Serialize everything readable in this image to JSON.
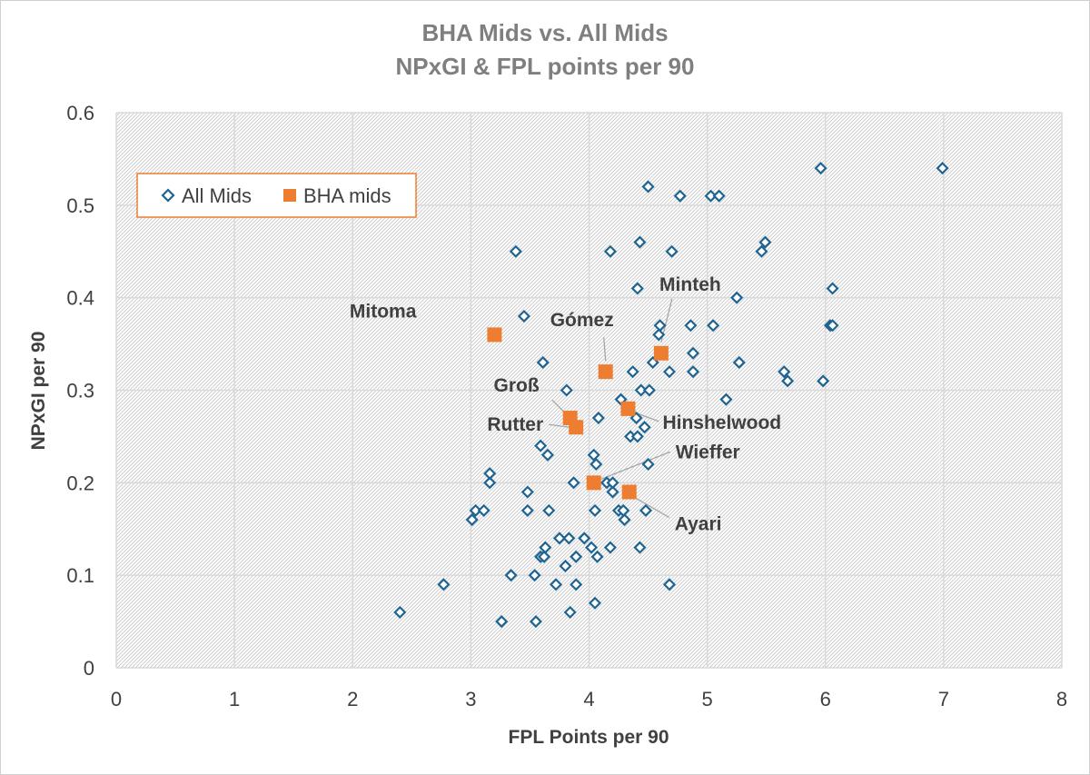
{
  "chart_data": {
    "type": "scatter",
    "title": "BHA Mids vs. All Mids",
    "subtitle": "NPxGI & FPL points per 90",
    "xlabel": "FPL Points per 90",
    "ylabel": "NPxGI per 90",
    "xlim": [
      0,
      8
    ],
    "ylim": [
      0,
      0.6
    ],
    "x_ticks": [
      "0",
      "1",
      "2",
      "3",
      "4",
      "5",
      "6",
      "7",
      "8"
    ],
    "y_ticks": [
      "0",
      "0.1",
      "0.2",
      "0.3",
      "0.4",
      "0.5",
      "0.6"
    ],
    "grid": true,
    "legend_position": "top-left",
    "series": [
      {
        "name": "All Mids",
        "marker": "diamond-outline",
        "color": "#1f6491",
        "points": [
          [
            2.4,
            0.06
          ],
          [
            2.77,
            0.09
          ],
          [
            3.01,
            0.16
          ],
          [
            3.04,
            0.17
          ],
          [
            3.11,
            0.17
          ],
          [
            3.16,
            0.2
          ],
          [
            3.16,
            0.21
          ],
          [
            3.26,
            0.05
          ],
          [
            3.34,
            0.1
          ],
          [
            3.38,
            0.45
          ],
          [
            3.45,
            0.38
          ],
          [
            3.48,
            0.19
          ],
          [
            3.48,
            0.17
          ],
          [
            3.54,
            0.1
          ],
          [
            3.55,
            0.05
          ],
          [
            3.59,
            0.24
          ],
          [
            3.59,
            0.12
          ],
          [
            3.61,
            0.33
          ],
          [
            3.62,
            0.12
          ],
          [
            3.63,
            0.13
          ],
          [
            3.65,
            0.23
          ],
          [
            3.66,
            0.17
          ],
          [
            3.72,
            0.09
          ],
          [
            3.75,
            0.14
          ],
          [
            3.8,
            0.11
          ],
          [
            3.81,
            0.3
          ],
          [
            3.83,
            0.14
          ],
          [
            3.84,
            0.06
          ],
          [
            3.87,
            0.2
          ],
          [
            3.89,
            0.09
          ],
          [
            3.89,
            0.12
          ],
          [
            3.96,
            0.14
          ],
          [
            4.02,
            0.13
          ],
          [
            4.04,
            0.23
          ],
          [
            4.05,
            0.17
          ],
          [
            4.05,
            0.07
          ],
          [
            4.06,
            0.22
          ],
          [
            4.07,
            0.12
          ],
          [
            4.08,
            0.27
          ],
          [
            4.15,
            0.2
          ],
          [
            4.18,
            0.45
          ],
          [
            4.18,
            0.13
          ],
          [
            4.2,
            0.19
          ],
          [
            4.2,
            0.2
          ],
          [
            4.25,
            0.17
          ],
          [
            4.27,
            0.29
          ],
          [
            4.29,
            0.17
          ],
          [
            4.3,
            0.16
          ],
          [
            4.35,
            0.25
          ],
          [
            4.37,
            0.32
          ],
          [
            4.4,
            0.27
          ],
          [
            4.41,
            0.41
          ],
          [
            4.41,
            0.25
          ],
          [
            4.43,
            0.46
          ],
          [
            4.43,
            0.13
          ],
          [
            4.44,
            0.3
          ],
          [
            4.47,
            0.26
          ],
          [
            4.48,
            0.17
          ],
          [
            4.5,
            0.52
          ],
          [
            4.5,
            0.22
          ],
          [
            4.51,
            0.3
          ],
          [
            4.54,
            0.33
          ],
          [
            4.59,
            0.36
          ],
          [
            4.6,
            0.37
          ],
          [
            4.68,
            0.32
          ],
          [
            4.68,
            0.09
          ],
          [
            4.7,
            0.45
          ],
          [
            4.77,
            0.51
          ],
          [
            4.86,
            0.37
          ],
          [
            4.88,
            0.34
          ],
          [
            4.88,
            0.32
          ],
          [
            5.03,
            0.51
          ],
          [
            5.05,
            0.37
          ],
          [
            5.1,
            0.51
          ],
          [
            5.16,
            0.29
          ],
          [
            5.25,
            0.4
          ],
          [
            5.27,
            0.33
          ],
          [
            5.46,
            0.45
          ],
          [
            5.49,
            0.46
          ],
          [
            5.65,
            0.32
          ],
          [
            5.68,
            0.31
          ],
          [
            5.96,
            0.54
          ],
          [
            5.98,
            0.31
          ],
          [
            6.04,
            0.37
          ],
          [
            6.06,
            0.37
          ],
          [
            6.06,
            0.41
          ],
          [
            6.99,
            0.54
          ]
        ]
      },
      {
        "name": "BHA mids",
        "marker": "square",
        "color": "#ed7d31",
        "points": [
          {
            "label": "Mitoma",
            "x": 3.2,
            "y": 0.36
          },
          {
            "label": "Gómez",
            "x": 4.14,
            "y": 0.32
          },
          {
            "label": "Minteh",
            "x": 4.61,
            "y": 0.34
          },
          {
            "label": "Groß",
            "x": 3.84,
            "y": 0.27
          },
          {
            "label": "Rutter",
            "x": 3.89,
            "y": 0.26
          },
          {
            "label": "Hinshelwood",
            "x": 4.33,
            "y": 0.28
          },
          {
            "label": "Wieffer",
            "x": 4.04,
            "y": 0.2
          },
          {
            "label": "Ayari",
            "x": 4.34,
            "y": 0.19
          }
        ]
      }
    ]
  }
}
